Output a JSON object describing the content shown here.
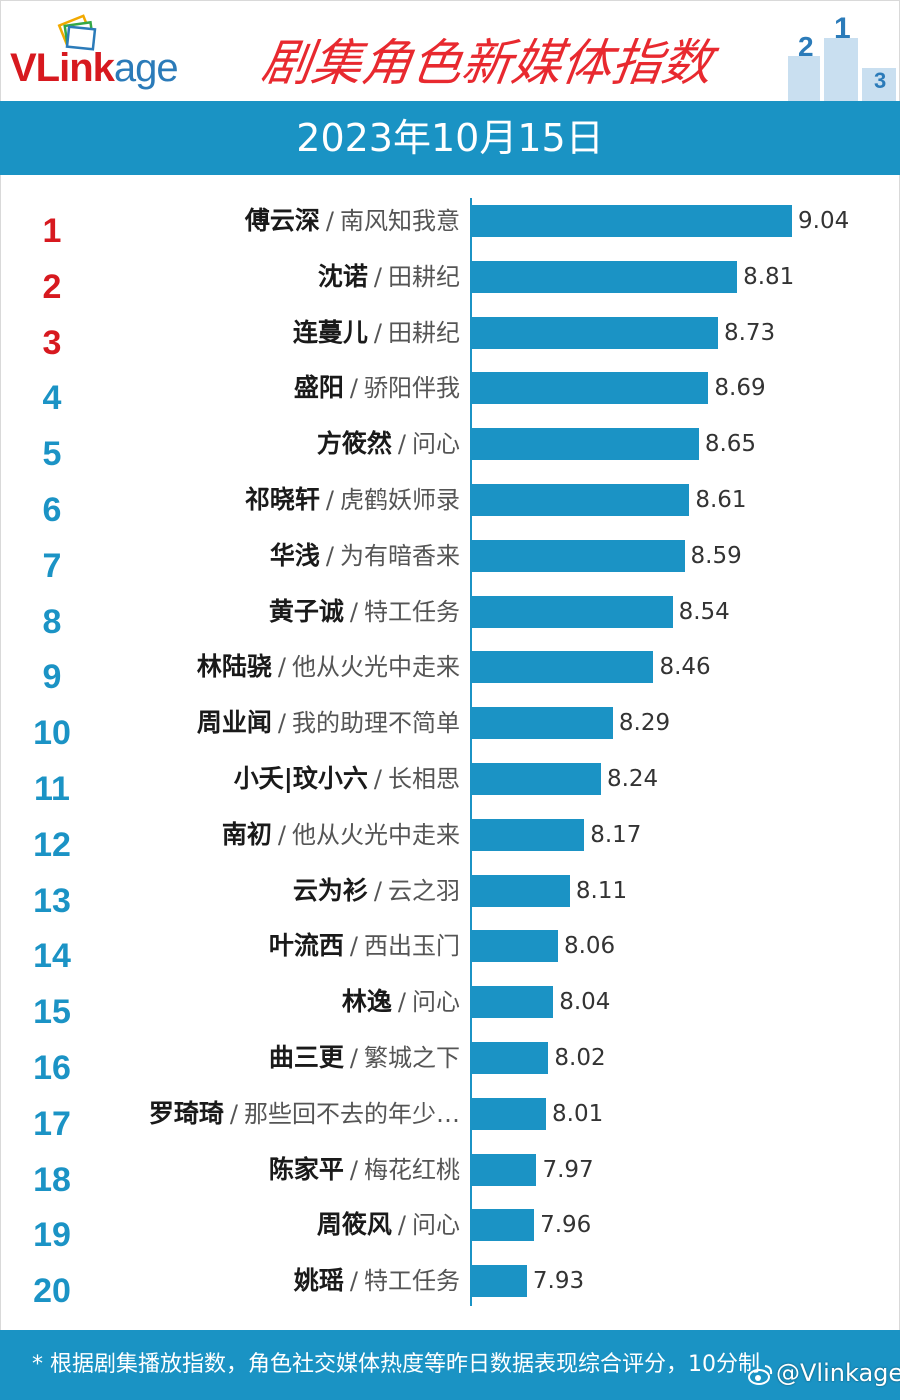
{
  "header": {
    "logo_prefix": "VLink",
    "logo_suffix": "age",
    "title": "剧集角色新媒体指数",
    "date": "2023年10月15日"
  },
  "colors": {
    "bar": "#1b93c5",
    "band": "#1a93c4",
    "title_red": "#e8292f",
    "rank_top3": "#d7191f",
    "rank_other": "#1b93c5"
  },
  "footer": {
    "note": "* 根据剧集播放指数，角色社交媒体热度等昨日数据表现综合评分，10分制",
    "watermark": "@Vlinkage"
  },
  "chart_data": {
    "type": "bar",
    "orientation": "horizontal",
    "title": "剧集角色新媒体指数",
    "subtitle": "2023年10月15日",
    "xlabel": "",
    "ylabel": "",
    "grid": false,
    "ranks": [
      "1",
      "2",
      "3",
      "4",
      "5",
      "6",
      "7",
      "8",
      "9",
      "10",
      "11",
      "12",
      "13",
      "14",
      "15",
      "16",
      "17",
      "18",
      "19",
      "20"
    ],
    "roles": [
      "傅云深",
      "沈诺",
      "连蔓儿",
      "盛阳",
      "方筱然",
      "祁晓轩",
      "华浅",
      "黄子诚",
      "林陆骁",
      "周业闻",
      "小夭|玟小六",
      "南初",
      "云为衫",
      "叶流西",
      "林逸",
      "曲三更",
      "罗琦琦",
      "陈家平",
      "周筱风",
      "姚瑶"
    ],
    "dramas": [
      "南风知我意",
      "田耕纪",
      "田耕纪",
      "骄阳伴我",
      "问心",
      "虎鹤妖师录",
      "为有暗香来",
      "特工任务",
      "他从火光中走来",
      "我的助理不简单",
      "长相思",
      "他从火光中走来",
      "云之羽",
      "西出玉门",
      "问心",
      "繁城之下",
      "那些回不去的年少…",
      "梅花红桃",
      "问心",
      "特工任务"
    ],
    "separator": "/",
    "values": [
      9.04,
      8.81,
      8.73,
      8.69,
      8.65,
      8.61,
      8.59,
      8.54,
      8.46,
      8.29,
      8.24,
      8.17,
      8.11,
      8.06,
      8.04,
      8.02,
      8.01,
      7.97,
      7.96,
      7.93
    ],
    "value_labels": [
      "9.04",
      "8.81",
      "8.73",
      "8.69",
      "8.65",
      "8.61",
      "8.59",
      "8.54",
      "8.46",
      "8.29",
      "8.24",
      "8.17",
      "8.11",
      "8.06",
      "8.04",
      "8.02",
      "8.01",
      "7.97",
      "7.96",
      "7.93"
    ],
    "xlim": [
      7.7,
      9.04
    ]
  }
}
